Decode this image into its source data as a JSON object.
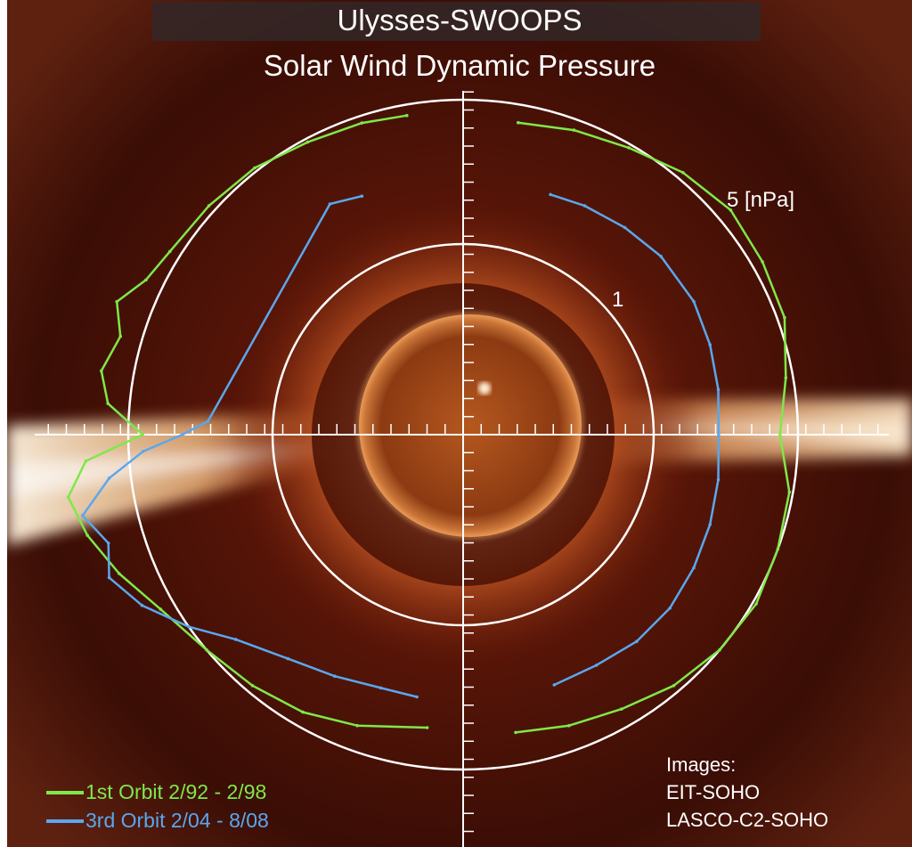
{
  "colors": {
    "first_orbit": "#7fe849",
    "third_orbit": "#5aa7ee",
    "rings": "#ffffff",
    "background": "#2a0a04",
    "streamer": "#ffd9a8",
    "title_banner": "#322828"
  },
  "title": {
    "line1": "Ulysses-SWOOPS",
    "line2": "Solar Wind Dynamic Pressure"
  },
  "ring_labels": {
    "inner": "1",
    "outer": "5 [nPa]"
  },
  "legend": {
    "items": [
      {
        "label": "1st Orbit 2/92 - 2/98",
        "color_key": "first_orbit"
      },
      {
        "label": "3rd Orbit 2/04 - 8/08",
        "color_key": "third_orbit"
      }
    ]
  },
  "credits": {
    "lines": [
      "Images:",
      "EIT-SOHO",
      "LASCO-C2-SOHO"
    ]
  },
  "chart_data": {
    "type": "polar",
    "radial_label": "[nPa]",
    "reference_rings": [
      1,
      5
    ],
    "series": [
      {
        "name": "1st Orbit 2/92 - 2/98",
        "color_key": "first_orbit",
        "points": [
          {
            "latitude": -83,
            "pressure": 3.9,
            "side": "left"
          },
          {
            "latitude": -70,
            "pressure": 4.3,
            "side": "left"
          },
          {
            "latitude": -60,
            "pressure": 4.6,
            "side": "left"
          },
          {
            "latitude": -50,
            "pressure": 4.8,
            "side": "left"
          },
          {
            "latitude": -40,
            "pressure": 5.0,
            "side": "left"
          },
          {
            "latitude": -30,
            "pressure": 5.4,
            "side": "left"
          },
          {
            "latitude": -22,
            "pressure": 6.0,
            "side": "left"
          },
          {
            "latitude": -15,
            "pressure": 6.5,
            "side": "left"
          },
          {
            "latitude": -9,
            "pressure": 6.8,
            "side": "left"
          },
          {
            "latitude": -4,
            "pressure": 6.2,
            "side": "left"
          },
          {
            "latitude": 0,
            "pressure": 4.6,
            "side": "left"
          },
          {
            "latitude": 5,
            "pressure": 5.6,
            "side": "left"
          },
          {
            "latitude": 10,
            "pressure": 5.9,
            "side": "left"
          },
          {
            "latitude": 16,
            "pressure": 5.6,
            "side": "left"
          },
          {
            "latitude": 21,
            "pressure": 6.0,
            "side": "left"
          },
          {
            "latitude": 26,
            "pressure": 5.5,
            "side": "left"
          },
          {
            "latitude": 32,
            "pressure": 5.3,
            "side": "left"
          },
          {
            "latitude": 42,
            "pressure": 5.2,
            "side": "left"
          },
          {
            "latitude": 52,
            "pressure": 5.1,
            "side": "left"
          },
          {
            "latitude": 62,
            "pressure": 4.9,
            "side": "left"
          },
          {
            "latitude": 72,
            "pressure": 4.8,
            "side": "left"
          },
          {
            "latitude": 80,
            "pressure": 4.7,
            "side": "left"
          },
          {
            "latitude": 80,
            "pressure": 4.5,
            "side": "right"
          },
          {
            "latitude": 70,
            "pressure": 4.7,
            "side": "right"
          },
          {
            "latitude": 60,
            "pressure": 4.9,
            "side": "right"
          },
          {
            "latitude": 50,
            "pressure": 5.2,
            "side": "right"
          },
          {
            "latitude": 40,
            "pressure": 5.4,
            "side": "right"
          },
          {
            "latitude": 30,
            "pressure": 5.3,
            "side": "right"
          },
          {
            "latitude": 20,
            "pressure": 5.2,
            "side": "right"
          },
          {
            "latitude": 10,
            "pressure": 4.8,
            "side": "right"
          },
          {
            "latitude": 0,
            "pressure": 4.5,
            "side": "right"
          },
          {
            "latitude": -10,
            "pressure": 4.9,
            "side": "right"
          },
          {
            "latitude": -20,
            "pressure": 5.0,
            "side": "right"
          },
          {
            "latitude": -30,
            "pressure": 5.1,
            "side": "right"
          },
          {
            "latitude": -40,
            "pressure": 5.0,
            "side": "right"
          },
          {
            "latitude": -50,
            "pressure": 4.8,
            "side": "right"
          },
          {
            "latitude": -60,
            "pressure": 4.5,
            "side": "right"
          },
          {
            "latitude": -70,
            "pressure": 4.3,
            "side": "right"
          },
          {
            "latitude": -80,
            "pressure": 4.1,
            "side": "right"
          }
        ]
      },
      {
        "name": "3rd Orbit 2/04 - 8/08",
        "color_key": "third_orbit",
        "points": [
          {
            "latitude": -80,
            "pressure": 3.1,
            "side": "left"
          },
          {
            "latitude": -72,
            "pressure": 3.1,
            "side": "left"
          },
          {
            "latitude": -62,
            "pressure": 3.3,
            "side": "left"
          },
          {
            "latitude": -52,
            "pressure": 3.6,
            "side": "left"
          },
          {
            "latitude": -42,
            "pressure": 4.2,
            "side": "left"
          },
          {
            "latitude": -35,
            "pressure": 5.0,
            "side": "left"
          },
          {
            "latitude": -28,
            "pressure": 5.8,
            "side": "left"
          },
          {
            "latitude": -22,
            "pressure": 6.3,
            "side": "left"
          },
          {
            "latitude": -17,
            "pressure": 6.0,
            "side": "left"
          },
          {
            "latitude": -12,
            "pressure": 6.5,
            "side": "left"
          },
          {
            "latitude": -7,
            "pressure": 5.6,
            "side": "left"
          },
          {
            "latitude": -3,
            "pressure": 4.6,
            "side": "left"
          },
          {
            "latitude": 0,
            "pressure": 3.5,
            "side": "left"
          },
          {
            "latitude": 3,
            "pressure": 2.8,
            "side": "left"
          },
          {
            "latitude": 60,
            "pressure": 3.1,
            "side": "left"
          },
          {
            "latitude": 67,
            "pressure": 2.9,
            "side": "left"
          },
          {
            "latitude": 70,
            "pressure": 2.8,
            "side": "right"
          },
          {
            "latitude": 62,
            "pressure": 2.9,
            "side": "right"
          },
          {
            "latitude": 52,
            "pressure": 3.0,
            "side": "right"
          },
          {
            "latitude": 42,
            "pressure": 3.1,
            "side": "right"
          },
          {
            "latitude": 30,
            "pressure": 3.1,
            "side": "right"
          },
          {
            "latitude": 20,
            "pressure": 3.0,
            "side": "right"
          },
          {
            "latitude": 10,
            "pressure": 2.9,
            "side": "right"
          },
          {
            "latitude": 0,
            "pressure": 2.8,
            "side": "right"
          },
          {
            "latitude": -10,
            "pressure": 2.9,
            "side": "right"
          },
          {
            "latitude": -20,
            "pressure": 3.0,
            "side": "right"
          },
          {
            "latitude": -30,
            "pressure": 3.1,
            "side": "right"
          },
          {
            "latitude": -40,
            "pressure": 3.2,
            "side": "right"
          },
          {
            "latitude": -50,
            "pressure": 3.2,
            "side": "right"
          },
          {
            "latitude": -60,
            "pressure": 3.1,
            "side": "right"
          },
          {
            "latitude": -70,
            "pressure": 3.1,
            "side": "right"
          }
        ]
      }
    ]
  }
}
